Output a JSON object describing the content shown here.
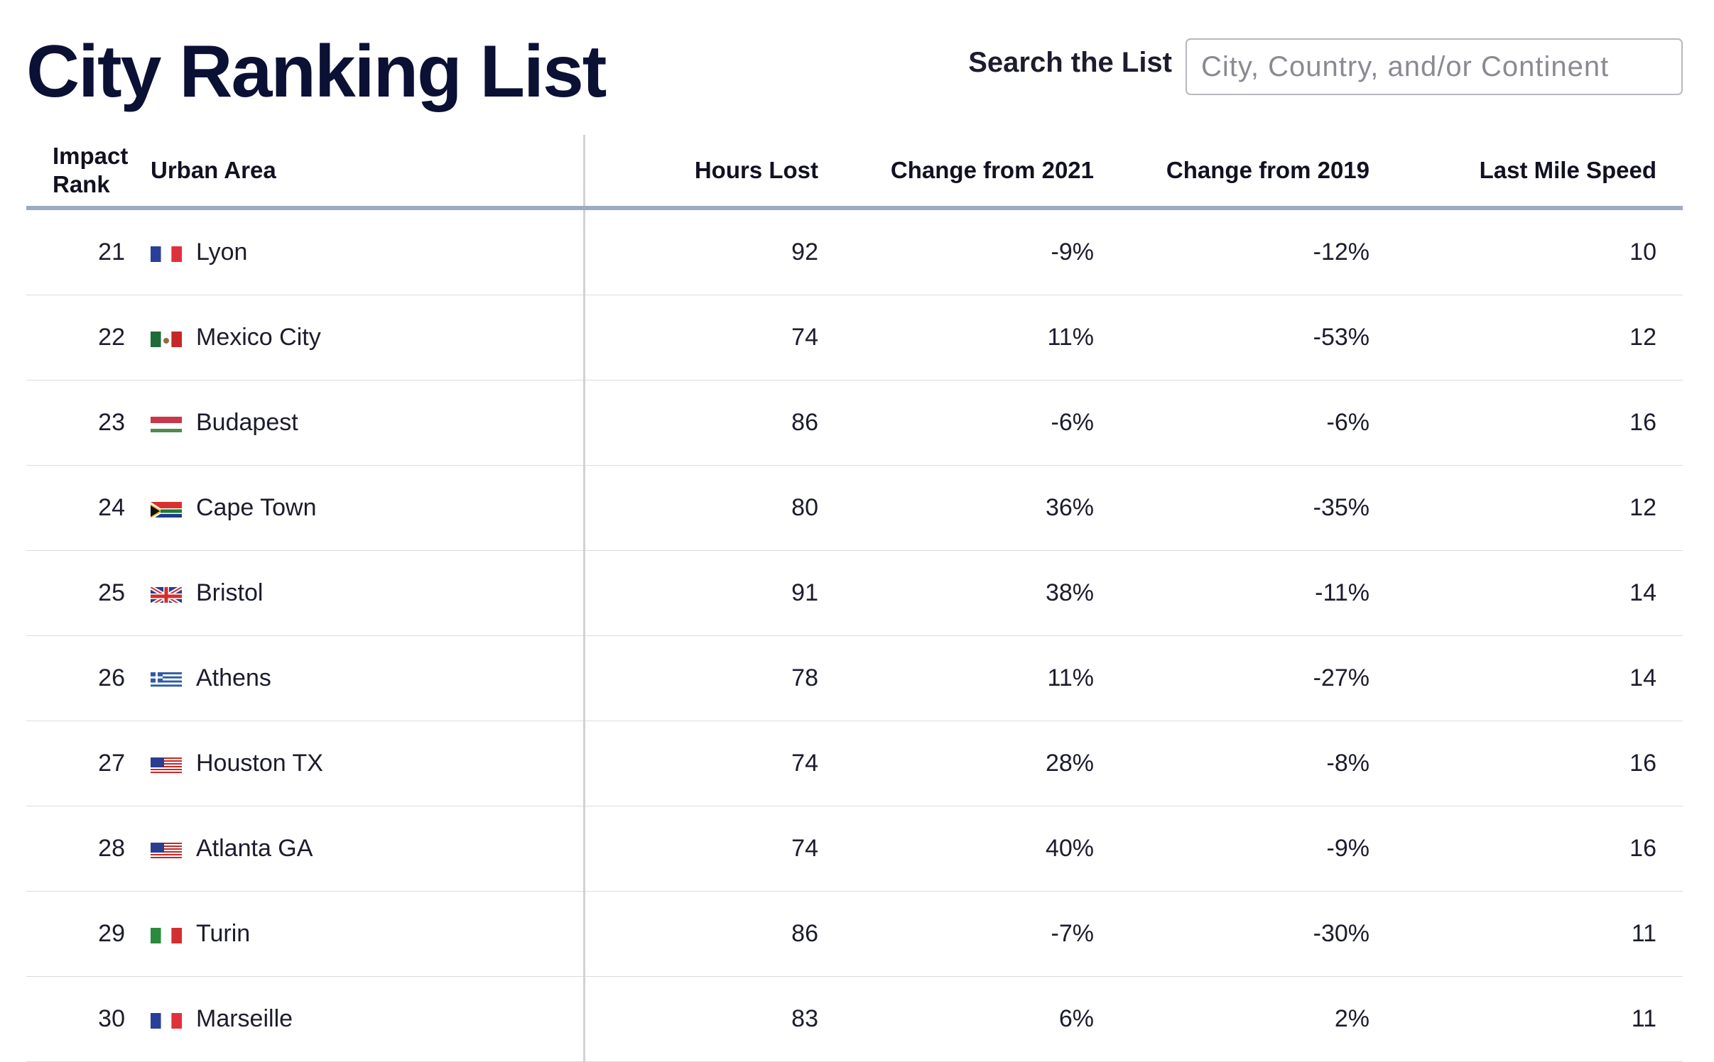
{
  "header": {
    "title": "City Ranking List",
    "search_label": "Search the List",
    "search_placeholder": "City, Country, and/or Continent",
    "search_value": ""
  },
  "table": {
    "columns": {
      "rank": "Impact Rank",
      "area": "Urban Area",
      "hours": "Hours Lost",
      "change_2021": "Change from 2021",
      "change_2019": "Change from 2019",
      "last_mile": "Last Mile Speed"
    },
    "rows": [
      {
        "rank": "21",
        "flag": "france-flag-icon",
        "city": "Lyon",
        "hours": "92",
        "change_2021": "-9%",
        "change_2019": "-12%",
        "last_mile": "10"
      },
      {
        "rank": "22",
        "flag": "mexico-flag-icon",
        "city": "Mexico City",
        "hours": "74",
        "change_2021": "11%",
        "change_2019": "-53%",
        "last_mile": "12"
      },
      {
        "rank": "23",
        "flag": "hungary-flag-icon",
        "city": "Budapest",
        "hours": "86",
        "change_2021": "-6%",
        "change_2019": "-6%",
        "last_mile": "16"
      },
      {
        "rank": "24",
        "flag": "south-africa-flag-icon",
        "city": "Cape Town",
        "hours": "80",
        "change_2021": "36%",
        "change_2019": "-35%",
        "last_mile": "12"
      },
      {
        "rank": "25",
        "flag": "uk-flag-icon",
        "city": "Bristol",
        "hours": "91",
        "change_2021": "38%",
        "change_2019": "-11%",
        "last_mile": "14"
      },
      {
        "rank": "26",
        "flag": "greece-flag-icon",
        "city": "Athens",
        "hours": "78",
        "change_2021": "11%",
        "change_2019": "-27%",
        "last_mile": "14"
      },
      {
        "rank": "27",
        "flag": "usa-flag-icon",
        "city": "Houston TX",
        "hours": "74",
        "change_2021": "28%",
        "change_2019": "-8%",
        "last_mile": "16"
      },
      {
        "rank": "28",
        "flag": "usa-flag-icon",
        "city": "Atlanta GA",
        "hours": "74",
        "change_2021": "40%",
        "change_2019": "-9%",
        "last_mile": "16"
      },
      {
        "rank": "29",
        "flag": "italy-flag-icon",
        "city": "Turin",
        "hours": "86",
        "change_2021": "-7%",
        "change_2019": "-30%",
        "last_mile": "11"
      },
      {
        "rank": "30",
        "flag": "france-flag-icon",
        "city": "Marseille",
        "hours": "83",
        "change_2021": "6%",
        "change_2019": "2%",
        "last_mile": "11"
      }
    ]
  },
  "colors": {
    "title": "#0b1035",
    "header_rule": "#9daabf",
    "row_rule": "#dcdce0"
  }
}
